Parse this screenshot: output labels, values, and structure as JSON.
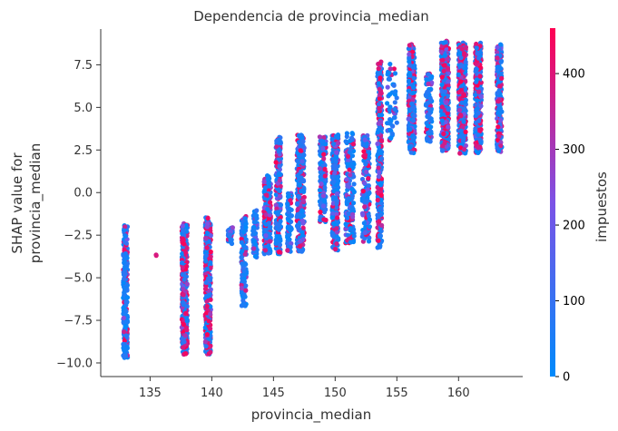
{
  "chart_data": {
    "type": "scatter",
    "title": "Dependencia de provincia_median",
    "xlabel": "provincia_median",
    "ylabel_lines": [
      "SHAP value for",
      "provincia_median"
    ],
    "xlim": [
      131.0,
      165.2
    ],
    "ylim": [
      -10.8,
      9.6
    ],
    "x_ticks": [
      135,
      140,
      145,
      150,
      155,
      160
    ],
    "y_ticks": [
      -10.0,
      -7.5,
      -5.0,
      -2.5,
      0.0,
      2.5,
      5.0,
      7.5
    ],
    "x_tick_labels": [
      "135",
      "140",
      "145",
      "150",
      "155",
      "160"
    ],
    "y_tick_labels": [
      "−10.0",
      "−7.5",
      "−5.0",
      "−2.5",
      "0.0",
      "2.5",
      "5.0",
      "7.5"
    ],
    "grid": false,
    "colorbar": {
      "label": "impuestos",
      "range": [
        0,
        460
      ],
      "ticks": [
        0,
        100,
        200,
        300,
        400
      ],
      "tick_labels": [
        "0",
        "100",
        "200",
        "300",
        "400"
      ],
      "color_low": "#008afb",
      "color_mid": "#7c52e6",
      "color_high": "#ff0052"
    },
    "clusters": [
      {
        "x": 133.0,
        "xw": 0.35,
        "ymin": -9.7,
        "ymax": -1.9,
        "redFrac": 0.15,
        "n": 260
      },
      {
        "x": 135.5,
        "xw": 0.05,
        "ymin": -3.7,
        "ymax": -3.6,
        "redFrac": 1.0,
        "n": 2
      },
      {
        "x": 137.8,
        "xw": 0.45,
        "ymin": -9.5,
        "ymax": -1.8,
        "redFrac": 0.45,
        "n": 320
      },
      {
        "x": 139.7,
        "xw": 0.45,
        "ymin": -9.5,
        "ymax": -1.4,
        "redFrac": 0.4,
        "n": 320
      },
      {
        "x": 141.5,
        "xw": 0.4,
        "ymin": -3.0,
        "ymax": -2.0,
        "redFrac": 0.1,
        "n": 40
      },
      {
        "x": 142.6,
        "xw": 0.4,
        "ymin": -6.8,
        "ymax": -1.4,
        "redFrac": 0.1,
        "n": 120
      },
      {
        "x": 143.5,
        "xw": 0.35,
        "ymin": -3.8,
        "ymax": -1.0,
        "redFrac": 0.05,
        "n": 60
      },
      {
        "x": 144.5,
        "xw": 0.55,
        "ymin": -3.6,
        "ymax": 1.0,
        "redFrac": 0.25,
        "n": 240
      },
      {
        "x": 145.4,
        "xw": 0.4,
        "ymin": -3.6,
        "ymax": 3.3,
        "redFrac": 0.3,
        "n": 200
      },
      {
        "x": 146.3,
        "xw": 0.35,
        "ymin": -3.5,
        "ymax": 0.0,
        "redFrac": 0.1,
        "n": 90
      },
      {
        "x": 147.2,
        "xw": 0.6,
        "ymin": -3.5,
        "ymax": 3.4,
        "redFrac": 0.3,
        "n": 230
      },
      {
        "x": 149.0,
        "xw": 0.5,
        "ymin": -1.8,
        "ymax": 3.3,
        "redFrac": 0.2,
        "n": 140
      },
      {
        "x": 150.0,
        "xw": 0.5,
        "ymin": -3.4,
        "ymax": 3.4,
        "redFrac": 0.25,
        "n": 260
      },
      {
        "x": 151.2,
        "xw": 0.7,
        "ymin": -3.0,
        "ymax": 3.5,
        "redFrac": 0.2,
        "n": 170
      },
      {
        "x": 152.5,
        "xw": 0.6,
        "ymin": -3.0,
        "ymax": 3.4,
        "redFrac": 0.2,
        "n": 150
      },
      {
        "x": 153.6,
        "xw": 0.35,
        "ymin": -3.4,
        "ymax": 7.7,
        "redFrac": 0.25,
        "n": 280
      },
      {
        "x": 154.6,
        "xw": 0.8,
        "ymin": 3.0,
        "ymax": 7.6,
        "redFrac": 0.05,
        "n": 60
      },
      {
        "x": 156.2,
        "xw": 0.5,
        "ymin": 2.3,
        "ymax": 8.7,
        "redFrac": 0.25,
        "n": 320
      },
      {
        "x": 157.6,
        "xw": 0.5,
        "ymin": 3.0,
        "ymax": 7.0,
        "redFrac": 0.15,
        "n": 90
      },
      {
        "x": 158.9,
        "xw": 0.6,
        "ymin": 2.4,
        "ymax": 8.9,
        "redFrac": 0.35,
        "n": 420
      },
      {
        "x": 160.3,
        "xw": 0.6,
        "ymin": 2.3,
        "ymax": 8.8,
        "redFrac": 0.4,
        "n": 420
      },
      {
        "x": 161.6,
        "xw": 0.5,
        "ymin": 2.3,
        "ymax": 8.8,
        "redFrac": 0.35,
        "n": 300
      },
      {
        "x": 163.3,
        "xw": 0.4,
        "ymin": 2.4,
        "ymax": 8.7,
        "redFrac": 0.35,
        "n": 220
      }
    ]
  }
}
